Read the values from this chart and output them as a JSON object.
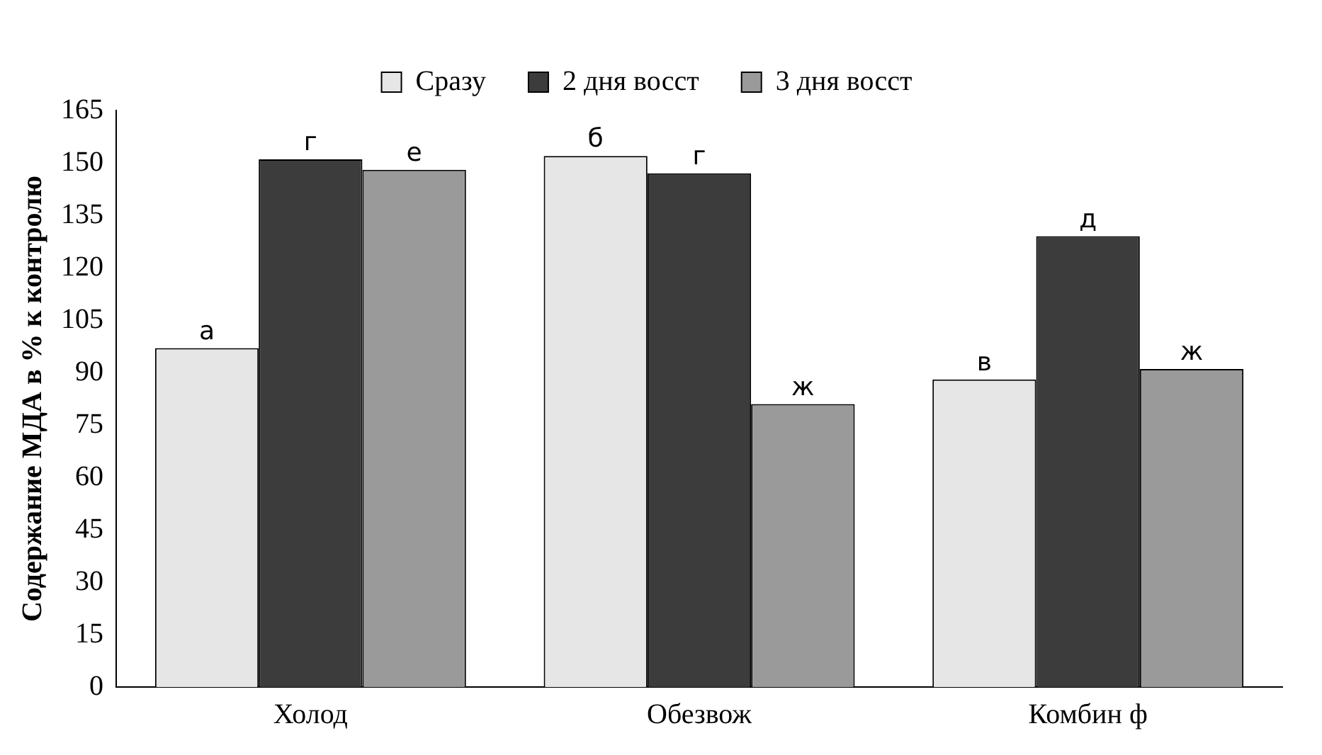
{
  "chart_data": {
    "type": "bar",
    "ylabel": "Содержание МДА в % к контролю",
    "categories": [
      "Холод",
      "Обезвож",
      "Комбин ф"
    ],
    "series": [
      {
        "name": "Сразу",
        "color": "#e6e6e6",
        "values": [
          97,
          152,
          88
        ],
        "value_labels": [
          "а",
          "б",
          "в"
        ]
      },
      {
        "name": "2 дня восст",
        "color": "#3c3c3c",
        "values": [
          151,
          147,
          129
        ],
        "value_labels": [
          "г",
          "г",
          "д"
        ]
      },
      {
        "name": "3 дня восст",
        "color": "#9a9a9a",
        "values": [
          148,
          81,
          91
        ],
        "value_labels": [
          "е",
          "ж",
          "ж"
        ]
      }
    ],
    "ylim": [
      0,
      165
    ],
    "yticks": [
      0,
      15,
      30,
      45,
      60,
      75,
      90,
      105,
      120,
      135,
      150,
      165
    ],
    "grid": false,
    "legend": "top"
  }
}
